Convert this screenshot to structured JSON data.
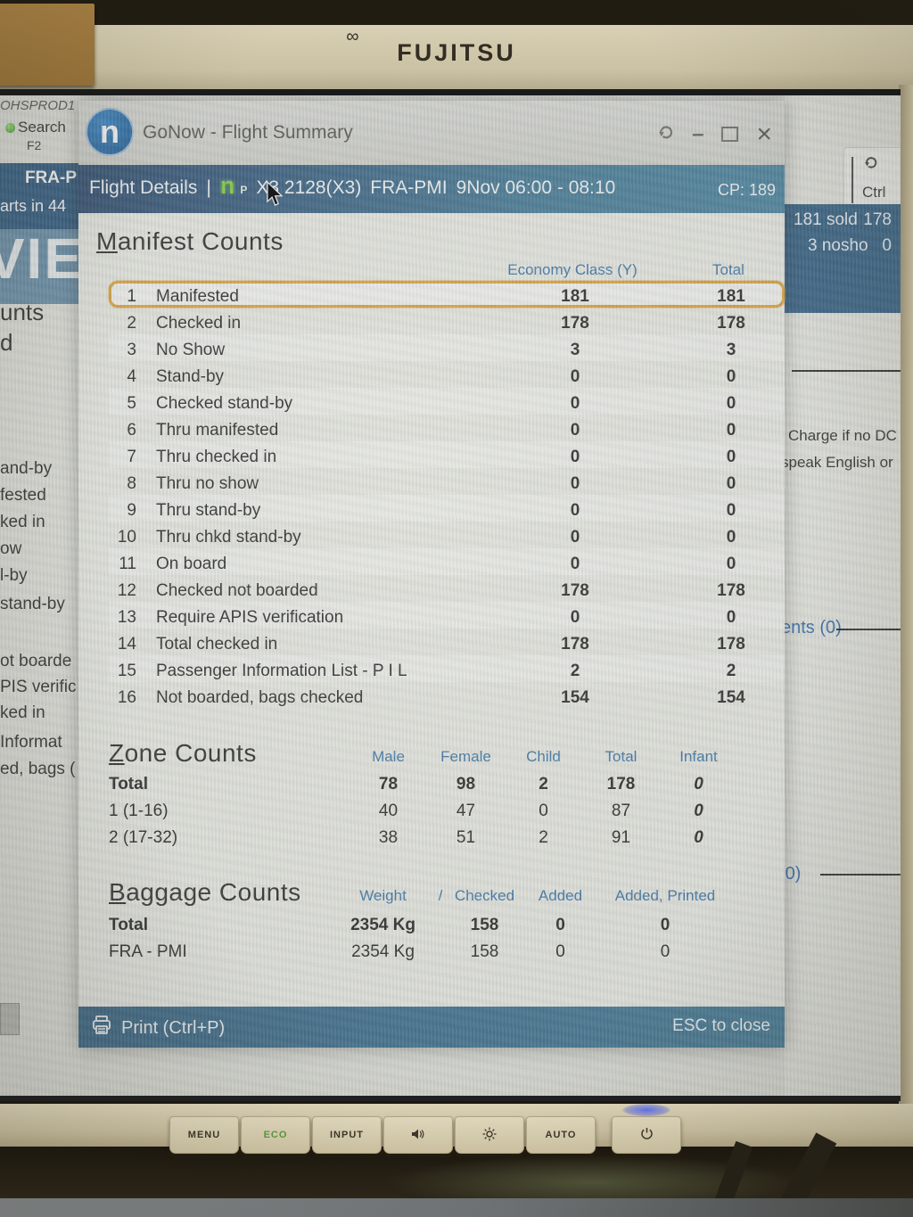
{
  "theme": {
    "highlight_orange": "#dd9d2f",
    "header_blue": "#2e6da4",
    "bar_navy": "#1f3f66",
    "bar_teal": "#3f7c9b",
    "panel_blue": "#27577f",
    "logo_blue": "#0e4e8d",
    "logo_green": "#79cb33"
  },
  "monitor": {
    "brand": "FUJITSU",
    "logo_accent": "∞",
    "buttons": [
      {
        "type": "text",
        "label": "MENU"
      },
      {
        "type": "text",
        "label": "ECO",
        "color": "#5a9e3a"
      },
      {
        "type": "text",
        "label": "INPUT"
      },
      {
        "type": "icon",
        "icon": "speaker-icon"
      },
      {
        "type": "icon",
        "icon": "brightness-icon"
      },
      {
        "type": "text",
        "label": "AUTO"
      },
      {
        "type": "icon",
        "icon": "power-icon"
      }
    ]
  },
  "screen": {
    "bg_left": {
      "env_label": "OHSPROD1",
      "search_label": "Search",
      "search_key": "F2",
      "route_fragment": "FRA-P",
      "departs_fragment": "arts in 44",
      "big_code": "VIE",
      "title_fragments": [
        "unts",
        "d"
      ],
      "list_fragments": [
        "and-by",
        "fested",
        "ked in",
        "ow",
        "l-by",
        "stand-by",
        "ot boarde",
        "PIS verific",
        "ked in",
        "Informat",
        "ed, bags ("
      ]
    },
    "bg_right": {
      "ctrl_label": "Ctrl",
      "sold_label": "181 sold",
      "sold_value": "178",
      "noshow_label": "3 nosho",
      "noshow_value": "0",
      "note_line1": "Charge if no DC",
      "note_line2": "speak English or",
      "ents_label": "ents (0)",
      "zero_label": "(0)"
    },
    "gonow": {
      "title": "GoNow - Flight Summary",
      "logo_letter": "n",
      "controls": {
        "minimize": "–",
        "close": "×"
      },
      "header": {
        "label": "Flight Details",
        "separator": "|",
        "logo_letter": "n",
        "logo_sub": "P",
        "flight": "X3 2128(X3)",
        "route": "FRA-PMI",
        "datetime": "9Nov 06:00 - 08:10",
        "cp": "CP: 189"
      },
      "manifest": {
        "title": "Manifest Counts",
        "col_economy": "Economy Class (Y)",
        "col_total": "Total",
        "rows": [
          {
            "num": "1",
            "label": "Manifested",
            "economy": "181",
            "total": "181",
            "highlight": true
          },
          {
            "num": "2",
            "label": "Checked in",
            "economy": "178",
            "total": "178"
          },
          {
            "num": "3",
            "label": "No Show",
            "economy": "3",
            "total": "3"
          },
          {
            "num": "4",
            "label": "Stand-by",
            "economy": "0",
            "total": "0"
          },
          {
            "num": "5",
            "label": "Checked stand-by",
            "economy": "0",
            "total": "0"
          },
          {
            "num": "6",
            "label": "Thru manifested",
            "economy": "0",
            "total": "0"
          },
          {
            "num": "7",
            "label": "Thru checked in",
            "economy": "0",
            "total": "0"
          },
          {
            "num": "8",
            "label": "Thru no show",
            "economy": "0",
            "total": "0"
          },
          {
            "num": "9",
            "label": "Thru stand-by",
            "economy": "0",
            "total": "0"
          },
          {
            "num": "10",
            "label": "Thru chkd stand-by",
            "economy": "0",
            "total": "0"
          },
          {
            "num": "11",
            "label": "On board",
            "economy": "0",
            "total": "0"
          },
          {
            "num": "12",
            "label": "Checked not boarded",
            "economy": "178",
            "total": "178"
          },
          {
            "num": "13",
            "label": "Require APIS verification",
            "economy": "0",
            "total": "0"
          },
          {
            "num": "14",
            "label": "Total checked in",
            "economy": "178",
            "total": "178"
          },
          {
            "num": "15",
            "label": "Passenger Information List - P I L",
            "economy": "2",
            "total": "2"
          },
          {
            "num": "16",
            "label": "Not boarded, bags checked",
            "economy": "154",
            "total": "154"
          }
        ]
      },
      "zones": {
        "title": "Zone Counts",
        "headers": [
          "Male",
          "Female",
          "Child",
          "Total",
          "Infant"
        ],
        "rows": [
          {
            "label": "Total",
            "bold": true,
            "values": [
              "78",
              "98",
              "2",
              "178",
              "0"
            ]
          },
          {
            "label": "1 (1-16)",
            "bold": false,
            "values": [
              "40",
              "47",
              "0",
              "87",
              "0"
            ]
          },
          {
            "label": "2 (17-32)",
            "bold": false,
            "values": [
              "38",
              "51",
              "2",
              "91",
              "0"
            ]
          }
        ]
      },
      "baggage": {
        "title": "Baggage Counts",
        "headers": [
          "Weight",
          "/",
          "Checked",
          "Added",
          "Added, Printed"
        ],
        "rows": [
          {
            "label": "Total",
            "bold": true,
            "values": [
              "2354 Kg",
              "158",
              "0",
              "0"
            ]
          },
          {
            "label": "FRA - PMI",
            "bold": false,
            "values": [
              "2354 Kg",
              "158",
              "0",
              "0"
            ]
          }
        ]
      },
      "footer": {
        "print_label": "Print (Ctrl+P)",
        "esc_label": "ESC to close"
      }
    }
  }
}
